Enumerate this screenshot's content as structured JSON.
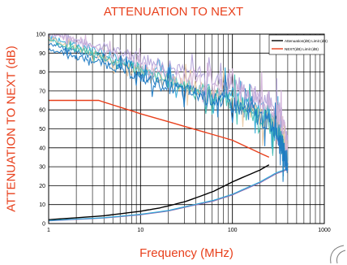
{
  "chart_data": {
    "type": "line",
    "title": "ATTENUATION TO NEXT",
    "xlabel": "Frequency (MHz)",
    "ylabel": "ATTENUATION TO NEXT (dB)",
    "x_scale": "log",
    "xlim": [
      1,
      1000
    ],
    "ylim": [
      0,
      100
    ],
    "x_ticks": [
      "1",
      "10",
      "100",
      "1000"
    ],
    "y_ticks": [
      "0",
      "10",
      "20",
      "30",
      "40",
      "50",
      "60",
      "70",
      "80",
      "90",
      "100"
    ],
    "grid": true,
    "legend_position": "top-right",
    "series": [
      {
        "name": "Attenuation(dB) Limit (dB)",
        "color": "#000000",
        "x": [
          1,
          4,
          10,
          16,
          20,
          31.25,
          62.5,
          100,
          200,
          250
        ],
        "y": [
          2.0,
          4.1,
          6.5,
          8.2,
          9.3,
          11.7,
          17.0,
          22.0,
          28.3,
          31.0
        ]
      },
      {
        "name": "NEXT(dB) Limit (dB)",
        "color": "#e8401c",
        "x": [
          1,
          3.5,
          10,
          100,
          250
        ],
        "y": [
          65.0,
          65.0,
          58.0,
          44.0,
          35.0
        ]
      },
      {
        "color": "#8b6bb0",
        "x": [
          1,
          4,
          10,
          20,
          62.5,
          100,
          200,
          300,
          400
        ],
        "y": [
          1.4,
          2.9,
          4.6,
          6.6,
          11.9,
          15.1,
          21.5,
          26.3,
          28.5
        ]
      },
      {
        "color": "#2ea8d8",
        "x": [
          1,
          4,
          10,
          20,
          62.5,
          100,
          200,
          300,
          400
        ],
        "y": [
          1.6,
          3.1,
          4.9,
          6.9,
          12.3,
          15.5,
          22.0,
          26.8,
          29.0
        ]
      },
      {
        "color": "#2ea8d8",
        "x": [
          1,
          1.5,
          2,
          3,
          5,
          8,
          12,
          20,
          35,
          60,
          100,
          150,
          220,
          300,
          330,
          360,
          400
        ],
        "y": [
          99,
          96,
          94,
          92,
          88,
          84,
          80,
          76,
          73,
          70,
          67,
          63,
          58,
          53,
          48,
          42,
          33
        ]
      },
      {
        "color": "#1a78c2",
        "x": [
          1,
          1.5,
          2,
          3,
          5,
          8,
          12,
          20,
          35,
          60,
          100,
          150,
          220,
          300,
          330,
          360,
          400
        ],
        "y": [
          95,
          93,
          91,
          89,
          85,
          81,
          77,
          73,
          70,
          67,
          64,
          60,
          56,
          51,
          46,
          40,
          31
        ]
      },
      {
        "color": "#b0a0d8",
        "x": [
          1,
          1.5,
          2,
          3,
          5,
          8,
          12,
          20,
          35,
          60,
          100,
          150,
          220,
          300,
          330,
          360,
          400
        ],
        "y": [
          100,
          99,
          97,
          95,
          92,
          89,
          86,
          83,
          80,
          77,
          74,
          70,
          66,
          62,
          58,
          52,
          44
        ]
      },
      {
        "color": "#e8c8a0",
        "x": [
          1,
          1.5,
          2,
          3,
          5,
          8,
          12,
          20,
          35,
          60,
          100,
          150,
          220,
          300,
          330,
          360,
          400
        ],
        "y": [
          98,
          95,
          93,
          90,
          86,
          82,
          79,
          75,
          72,
          69,
          66,
          62,
          57,
          52,
          47,
          41,
          32
        ]
      },
      {
        "color": "#40c0b0",
        "x": [
          1,
          1.5,
          2,
          3,
          5,
          8,
          12,
          20,
          35,
          60,
          100,
          150,
          220,
          300,
          330,
          360,
          400
        ],
        "y": [
          97,
          94,
          92,
          90,
          86,
          83,
          79,
          75,
          72,
          68,
          65,
          61,
          56,
          50,
          45,
          39,
          30
        ]
      },
      {
        "color": "#d0b0d8",
        "x": [
          1,
          1.5,
          2,
          3,
          5,
          8,
          12,
          20,
          35,
          60,
          100,
          150,
          220,
          300,
          330,
          360,
          400
        ],
        "y": [
          100,
          98,
          96,
          93,
          89,
          86,
          82,
          79,
          76,
          73,
          70,
          67,
          63,
          59,
          55,
          50,
          42
        ]
      },
      {
        "color": "#1a78c2",
        "x": [
          1,
          1.5,
          2,
          3,
          5,
          8,
          12,
          20,
          35,
          60,
          100,
          150,
          220,
          300,
          330,
          360,
          400
        ],
        "y": [
          92,
          90,
          88,
          86,
          83,
          79,
          76,
          72,
          69,
          66,
          63,
          59,
          55,
          50,
          45,
          38,
          29
        ]
      }
    ]
  }
}
